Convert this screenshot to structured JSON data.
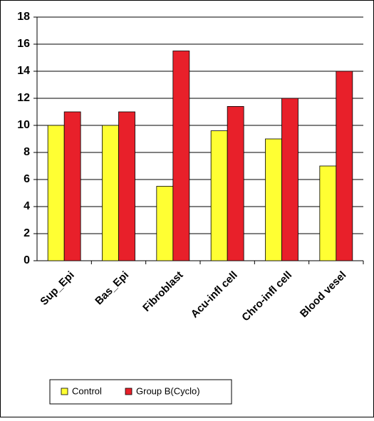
{
  "chart_data": {
    "type": "bar",
    "categories": [
      "Sup_Epi",
      "Bas_Epi",
      "Fibroblast",
      "Acu-infl cell",
      "Chro-infl cell",
      "Blood vesel"
    ],
    "series": [
      {
        "name": "Control",
        "color": "#ffff33",
        "values": [
          10,
          10,
          5.5,
          9.6,
          9,
          7
        ]
      },
      {
        "name": "Group B(Cyclo)",
        "color": "#e8202a",
        "values": [
          11,
          11,
          15.5,
          11.4,
          12,
          14
        ]
      }
    ],
    "ylim": [
      0,
      18
    ],
    "yticks": [
      0,
      2,
      4,
      6,
      8,
      10,
      12,
      14,
      16,
      18
    ],
    "grid": true,
    "legend": "bottom"
  }
}
